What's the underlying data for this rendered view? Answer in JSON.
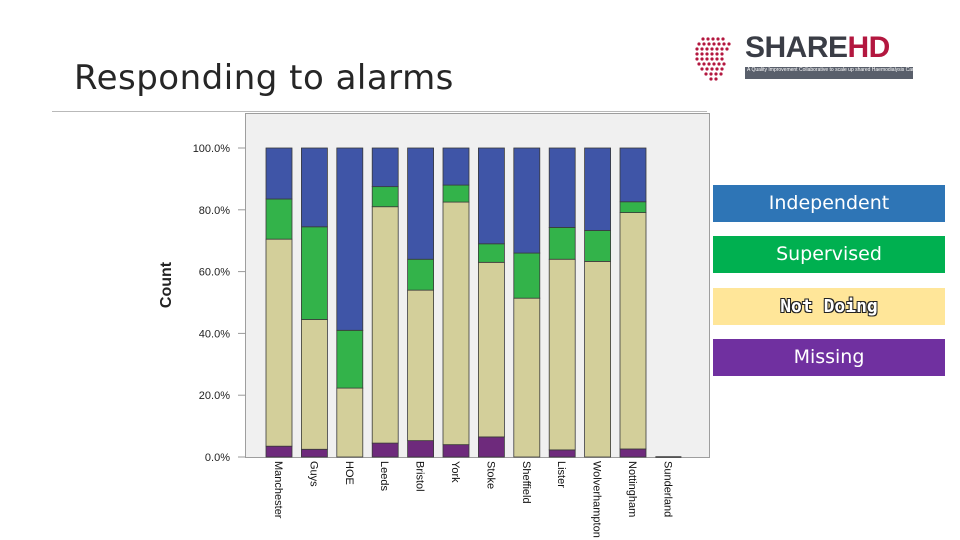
{
  "slide": {
    "title": "Responding to alarms"
  },
  "logo": {
    "share": "SHARE",
    "hd": "HD",
    "tagline": "A Quality Improvement Collaborative to scale up shared Haemodialysis Care in centre based haemodialysis patients"
  },
  "legend": {
    "independent": "Independent",
    "supervised": "Supervised",
    "not_doing": "Not Doing",
    "missing": "Missing"
  },
  "colors": {
    "independent": "#3f55a7",
    "supervised": "#33b34a",
    "not_doing": "#d3cf9a",
    "missing": "#6e2a7c",
    "legend_independent": "#2e75b6",
    "legend_supervised": "#00b050",
    "legend_not_doing": "#ffe699",
    "legend_missing": "#7030a0"
  },
  "chart_data": {
    "type": "bar",
    "stacked": true,
    "ylabel": "Count",
    "ylim": [
      0,
      100
    ],
    "y_ticks": [
      0,
      20,
      40,
      60,
      80,
      100
    ],
    "y_tick_labels": [
      "0.0%",
      "20.0%",
      "40.0%",
      "60.0%",
      "80.0%",
      "100.0%"
    ],
    "categories": [
      "Manchester",
      "Guys",
      "HOE",
      "Leeds",
      "Bristol",
      "York",
      "Stoke",
      "Sheffield",
      "Lister",
      "Wolverhampton",
      "Nottingham",
      "Sunderland"
    ],
    "category_labels": [
      "Manchester",
      "Guys",
      "HOE",
      "Leeds",
      "Bristol",
      "York",
      "Stoke",
      "Sheffield",
      "Lister",
      "Wolverhampton",
      "Nottingham",
      "Sunderland"
    ],
    "series": [
      {
        "name": "Missing",
        "key": "missing",
        "values": [
          3.5,
          2.5,
          0,
          4.5,
          5.3,
          4,
          6.5,
          0,
          2.3,
          0,
          2.6,
          0
        ]
      },
      {
        "name": "Not Doing",
        "key": "not_doing",
        "values": [
          67,
          42,
          22.3,
          76.5,
          48.7,
          78.5,
          56.5,
          51.4,
          61.7,
          63.3,
          76.5,
          0
        ]
      },
      {
        "name": "Supervised",
        "key": "supervised",
        "values": [
          13,
          30,
          18.7,
          6.5,
          10,
          5.5,
          6,
          14.6,
          10.3,
          10,
          3.5,
          0
        ]
      },
      {
        "name": "Independent",
        "key": "independent",
        "values": [
          16.5,
          25.5,
          59,
          12.5,
          36,
          12,
          31,
          34,
          25.7,
          26.7,
          17.4,
          0
        ]
      }
    ]
  }
}
